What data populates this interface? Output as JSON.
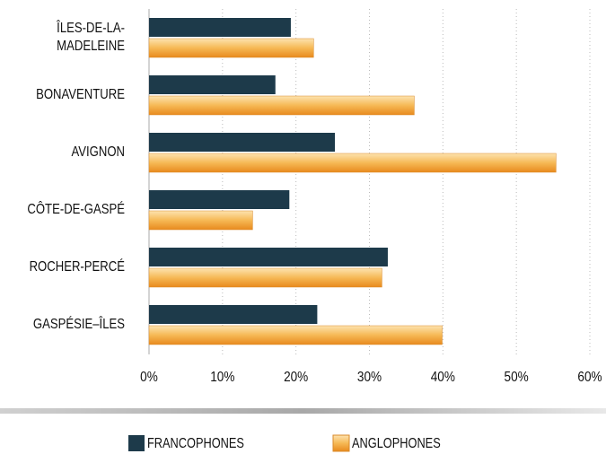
{
  "chart_data": {
    "type": "bar",
    "orientation": "horizontal",
    "categories": [
      "ÎLES-DE-LA-\nMADELEINE",
      "BONAVENTURE",
      "AVIGNON",
      "CÔTE-DE-GASPÉ",
      "ROCHER-PERCÉ",
      "GASPÉSIE–ÎLES"
    ],
    "series": [
      {
        "name": "FRANCOPHONES",
        "color": "#1d3a4a",
        "values": [
          19.3,
          17.2,
          25.3,
          19.1,
          32.5,
          22.9
        ]
      },
      {
        "name": "ANGLOPHONES",
        "color": "#f2a23c",
        "values": [
          22.4,
          36.1,
          55.4,
          14.1,
          31.7,
          39.9
        ]
      }
    ],
    "xlim": [
      0,
      60
    ],
    "xticks": [
      {
        "value": 0,
        "label": "0%"
      },
      {
        "value": 10,
        "label": "10%"
      },
      {
        "value": 20,
        "label": "20%"
      },
      {
        "value": 30,
        "label": "30%"
      },
      {
        "value": 40,
        "label": "40%"
      },
      {
        "value": 50,
        "label": "50%"
      },
      {
        "value": 60,
        "label": "60%"
      }
    ],
    "grid": true
  }
}
